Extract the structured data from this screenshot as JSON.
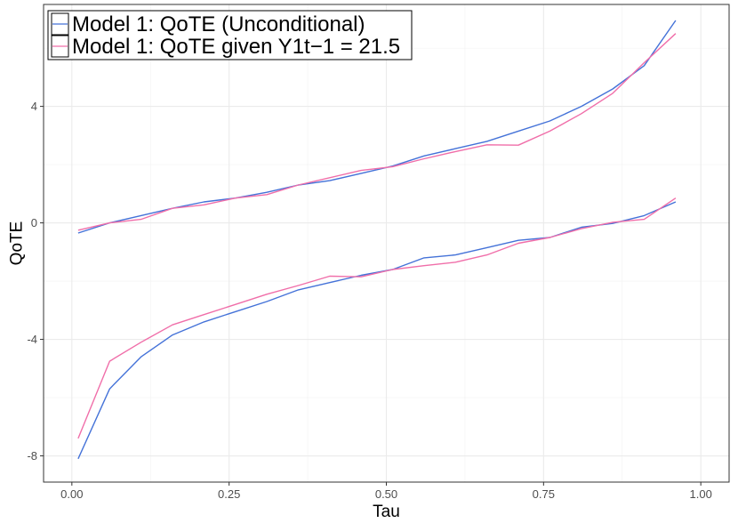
{
  "chart_data": {
    "type": "line",
    "title": "",
    "xlabel": "Tau",
    "ylabel": "QoTE",
    "xlim": [
      -0.045,
      1.045
    ],
    "ylim": [
      -8.9,
      7.5
    ],
    "x_ticks": [
      0.0,
      0.25,
      0.5,
      0.75,
      1.0
    ],
    "x_tick_labels": [
      "0.00",
      "0.25",
      "0.50",
      "0.75",
      "1.00"
    ],
    "y_ticks": [
      -8,
      -4,
      0,
      4
    ],
    "y_tick_labels": [
      "-8",
      "-4",
      "0",
      "4"
    ],
    "grid": true,
    "legend_position": "top-left",
    "x": [
      0.01,
      0.06,
      0.11,
      0.16,
      0.21,
      0.26,
      0.31,
      0.36,
      0.41,
      0.46,
      0.51,
      0.56,
      0.61,
      0.66,
      0.71,
      0.76,
      0.81,
      0.86,
      0.91,
      0.96
    ],
    "series": [
      {
        "name": "Model 1: QoTE (Unconditional)",
        "color": "#4472d8",
        "upper": [
          -0.35,
          0.0,
          0.25,
          0.5,
          0.72,
          0.85,
          1.05,
          1.3,
          1.45,
          1.7,
          1.95,
          2.3,
          2.55,
          2.8,
          3.15,
          3.5,
          4.0,
          4.6,
          5.4,
          6.95
        ],
        "lower": [
          -8.1,
          -5.7,
          -4.6,
          -3.85,
          -3.4,
          -3.05,
          -2.7,
          -2.3,
          -2.05,
          -1.8,
          -1.6,
          -1.2,
          -1.1,
          -0.85,
          -0.6,
          -0.5,
          -0.15,
          -0.02,
          0.25,
          0.72
        ]
      },
      {
        "name": "Model 1: QoTE given Y1t−1 = 21.5",
        "color": "#f06ea9",
        "upper": [
          -0.25,
          0.0,
          0.12,
          0.5,
          0.62,
          0.85,
          0.97,
          1.3,
          1.55,
          1.8,
          1.93,
          2.2,
          2.45,
          2.68,
          2.67,
          3.15,
          3.75,
          4.45,
          5.5,
          6.5
        ],
        "lower": [
          -7.4,
          -4.75,
          -4.1,
          -3.5,
          -3.15,
          -2.8,
          -2.45,
          -2.15,
          -1.83,
          -1.85,
          -1.6,
          -1.47,
          -1.35,
          -1.1,
          -0.7,
          -0.5,
          -0.2,
          0.02,
          0.12,
          0.85
        ]
      }
    ]
  }
}
